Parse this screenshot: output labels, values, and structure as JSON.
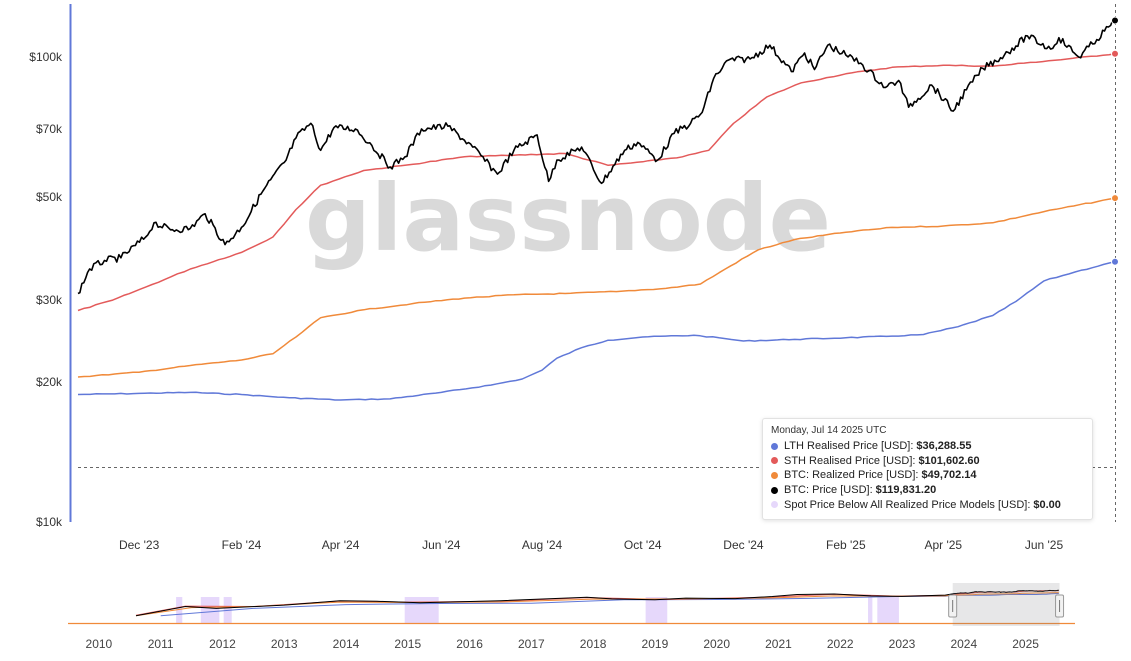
{
  "watermark": "glassnode",
  "chart_data": {
    "type": "line",
    "y_scale": "log",
    "ylim": [
      10000,
      130000
    ],
    "y_ticks": [
      {
        "value": 10000,
        "label": "$10k"
      },
      {
        "value": 20000,
        "label": "$20k"
      },
      {
        "value": 30000,
        "label": "$30k"
      },
      {
        "value": 50000,
        "label": "$50k"
      },
      {
        "value": 70000,
        "label": "$70k"
      },
      {
        "value": 100000,
        "label": "$100k"
      }
    ],
    "x_ticks": [
      "Dec '23",
      "Feb '24",
      "Apr '24",
      "Jun '24",
      "Aug '24",
      "Oct '24",
      "Dec '24",
      "Feb '25",
      "Apr '25",
      "Jun '25"
    ],
    "x_range": [
      "2023-10-25",
      "2025-07-14"
    ],
    "series": [
      {
        "key": "lth",
        "color": "#6078d8",
        "width": 1.5,
        "points": [
          [
            "2023-10-25",
            18800
          ],
          [
            "2023-12-01",
            18900
          ],
          [
            "2024-01-01",
            19000
          ],
          [
            "2024-02-01",
            18800
          ],
          [
            "2024-03-01",
            18500
          ],
          [
            "2024-04-01",
            18300
          ],
          [
            "2024-05-01",
            18400
          ],
          [
            "2024-06-01",
            19000
          ],
          [
            "2024-07-01",
            19700
          ],
          [
            "2024-07-20",
            20300
          ],
          [
            "2024-08-01",
            21200
          ],
          [
            "2024-08-10",
            22500
          ],
          [
            "2024-08-25",
            23700
          ],
          [
            "2024-09-10",
            24600
          ],
          [
            "2024-10-01",
            25000
          ],
          [
            "2024-11-01",
            25200
          ],
          [
            "2024-11-20",
            24800
          ],
          [
            "2024-12-01",
            24500
          ],
          [
            "2025-01-01",
            24700
          ],
          [
            "2025-02-01",
            24900
          ],
          [
            "2025-03-01",
            25100
          ],
          [
            "2025-03-20",
            25300
          ],
          [
            "2025-04-10",
            26300
          ],
          [
            "2025-05-01",
            27800
          ],
          [
            "2025-05-15",
            29800
          ],
          [
            "2025-06-01",
            33000
          ],
          [
            "2025-06-20",
            34500
          ],
          [
            "2025-07-14",
            36288.55
          ]
        ]
      },
      {
        "key": "sth",
        "color": "#e35a5a",
        "width": 1.5,
        "points": [
          [
            "2023-10-25",
            28500
          ],
          [
            "2023-11-15",
            30000
          ],
          [
            "2023-12-05",
            32000
          ],
          [
            "2024-01-01",
            35000
          ],
          [
            "2024-02-01",
            38000
          ],
          [
            "2024-02-20",
            41000
          ],
          [
            "2024-03-05",
            47000
          ],
          [
            "2024-03-20",
            53000
          ],
          [
            "2024-04-15",
            57000
          ],
          [
            "2024-05-15",
            58800
          ],
          [
            "2024-06-15",
            61000
          ],
          [
            "2024-07-15",
            61500
          ],
          [
            "2024-08-15",
            62000
          ],
          [
            "2024-09-10",
            58500
          ],
          [
            "2024-10-01",
            59500
          ],
          [
            "2024-10-25",
            61000
          ],
          [
            "2024-11-10",
            63000
          ],
          [
            "2024-11-25",
            72000
          ],
          [
            "2024-12-15",
            82000
          ],
          [
            "2025-01-05",
            88000
          ],
          [
            "2025-02-01",
            92000
          ],
          [
            "2025-03-01",
            95000
          ],
          [
            "2025-04-01",
            96000
          ],
          [
            "2025-05-01",
            95500
          ],
          [
            "2025-05-20",
            97000
          ],
          [
            "2025-06-15",
            99000
          ],
          [
            "2025-07-14",
            101602.6
          ]
        ]
      },
      {
        "key": "realized",
        "color": "#f08a3a",
        "width": 1.5,
        "points": [
          [
            "2023-10-25",
            20500
          ],
          [
            "2023-12-01",
            21000
          ],
          [
            "2024-01-01",
            21700
          ],
          [
            "2024-02-01",
            22300
          ],
          [
            "2024-02-20",
            23000
          ],
          [
            "2024-03-05",
            25000
          ],
          [
            "2024-03-20",
            27500
          ],
          [
            "2024-04-15",
            28600
          ],
          [
            "2024-05-15",
            29500
          ],
          [
            "2024-06-15",
            30300
          ],
          [
            "2024-07-15",
            30800
          ],
          [
            "2024-08-15",
            31000
          ],
          [
            "2024-09-15",
            31300
          ],
          [
            "2024-10-15",
            31800
          ],
          [
            "2024-11-05",
            32500
          ],
          [
            "2024-11-20",
            35000
          ],
          [
            "2024-12-10",
            38500
          ],
          [
            "2025-01-01",
            40500
          ],
          [
            "2025-02-01",
            42000
          ],
          [
            "2025-03-01",
            43000
          ],
          [
            "2025-04-01",
            43300
          ],
          [
            "2025-05-01",
            44000
          ],
          [
            "2025-06-01",
            46500
          ],
          [
            "2025-07-14",
            49702.14
          ]
        ]
      },
      {
        "key": "price",
        "color": "#000000",
        "width": 1.6,
        "points": [
          [
            "2023-10-25",
            31000
          ],
          [
            "2023-11-01",
            35000
          ],
          [
            "2023-11-10",
            36500
          ],
          [
            "2023-11-20",
            37000
          ],
          [
            "2023-12-05",
            41000
          ],
          [
            "2023-12-10",
            44000
          ],
          [
            "2023-12-20",
            42500
          ],
          [
            "2024-01-01",
            42800
          ],
          [
            "2024-01-10",
            46000
          ],
          [
            "2024-01-22",
            39500
          ],
          [
            "2024-02-01",
            43000
          ],
          [
            "2024-02-14",
            51500
          ],
          [
            "2024-02-28",
            60000
          ],
          [
            "2024-03-05",
            67000
          ],
          [
            "2024-03-14",
            72000
          ],
          [
            "2024-03-20",
            63000
          ],
          [
            "2024-03-28",
            70500
          ],
          [
            "2024-04-10",
            70000
          ],
          [
            "2024-04-20",
            64500
          ],
          [
            "2024-05-01",
            58000
          ],
          [
            "2024-05-10",
            61000
          ],
          [
            "2024-05-20",
            70000
          ],
          [
            "2024-06-05",
            71000
          ],
          [
            "2024-06-20",
            64000
          ],
          [
            "2024-07-05",
            56000
          ],
          [
            "2024-07-15",
            63000
          ],
          [
            "2024-07-29",
            68000
          ],
          [
            "2024-08-05",
            54000
          ],
          [
            "2024-08-10",
            60000
          ],
          [
            "2024-08-25",
            64000
          ],
          [
            "2024-09-06",
            53500
          ],
          [
            "2024-09-20",
            63000
          ],
          [
            "2024-09-28",
            65500
          ],
          [
            "2024-10-10",
            60000
          ],
          [
            "2024-10-20",
            68500
          ],
          [
            "2024-10-30",
            72000
          ],
          [
            "2024-11-06",
            76000
          ],
          [
            "2024-11-13",
            90000
          ],
          [
            "2024-11-22",
            98500
          ],
          [
            "2024-12-05",
            99000
          ],
          [
            "2024-12-17",
            106000
          ],
          [
            "2024-12-30",
            93000
          ],
          [
            "2025-01-07",
            102000
          ],
          [
            "2025-01-13",
            94000
          ],
          [
            "2025-01-21",
            106000
          ],
          [
            "2025-02-01",
            101000
          ],
          [
            "2025-02-10",
            97000
          ],
          [
            "2025-02-25",
            86000
          ],
          [
            "2025-03-05",
            89000
          ],
          [
            "2025-03-11",
            78000
          ],
          [
            "2025-03-25",
            87000
          ],
          [
            "2025-04-07",
            76500
          ],
          [
            "2025-04-15",
            85000
          ],
          [
            "2025-04-25",
            94500
          ],
          [
            "2025-05-08",
            101000
          ],
          [
            "2025-05-22",
            111000
          ],
          [
            "2025-06-05",
            104000
          ],
          [
            "2025-06-10",
            110000
          ],
          [
            "2025-06-22",
            100000
          ],
          [
            "2025-07-03",
            109000
          ],
          [
            "2025-07-10",
            116000
          ],
          [
            "2025-07-14",
            119831.2
          ]
        ]
      }
    ]
  },
  "tooltip": {
    "date": "Monday, Jul 14 2025 UTC",
    "rows": [
      {
        "color": "#6078d8",
        "label": "LTH Realised Price [USD]:",
        "value": "$36,288.55"
      },
      {
        "color": "#e35a5a",
        "label": "STH Realised Price [USD]:",
        "value": "$101,602.60"
      },
      {
        "color": "#f08a3a",
        "label": "BTC: Realized Price [USD]:",
        "value": "$49,702.14"
      },
      {
        "color": "#000000",
        "label": "BTC: Price [USD]:",
        "value": "$119,831.20"
      },
      {
        "color": "#e6d8fb",
        "label": "Spot Price Below All Realized Price Models [USD]:",
        "value": "$0.00"
      }
    ]
  },
  "navigator": {
    "years": [
      "2010",
      "2011",
      "2012",
      "2013",
      "2014",
      "2015",
      "2016",
      "2017",
      "2018",
      "2019",
      "2020",
      "2021",
      "2022",
      "2023",
      "2024",
      "2025"
    ],
    "x_range": [
      2009.5,
      2025.8
    ],
    "selection": [
      2023.82,
      2025.55
    ],
    "shade_color": "#e6d8fb",
    "shaded_periods": [
      [
        2011.25,
        2011.35
      ],
      [
        2011.65,
        2011.95
      ],
      [
        2012.02,
        2012.15
      ],
      [
        2014.95,
        2015.5
      ],
      [
        2018.85,
        2019.2
      ],
      [
        2022.45,
        2022.52
      ],
      [
        2022.6,
        2022.95
      ]
    ]
  }
}
